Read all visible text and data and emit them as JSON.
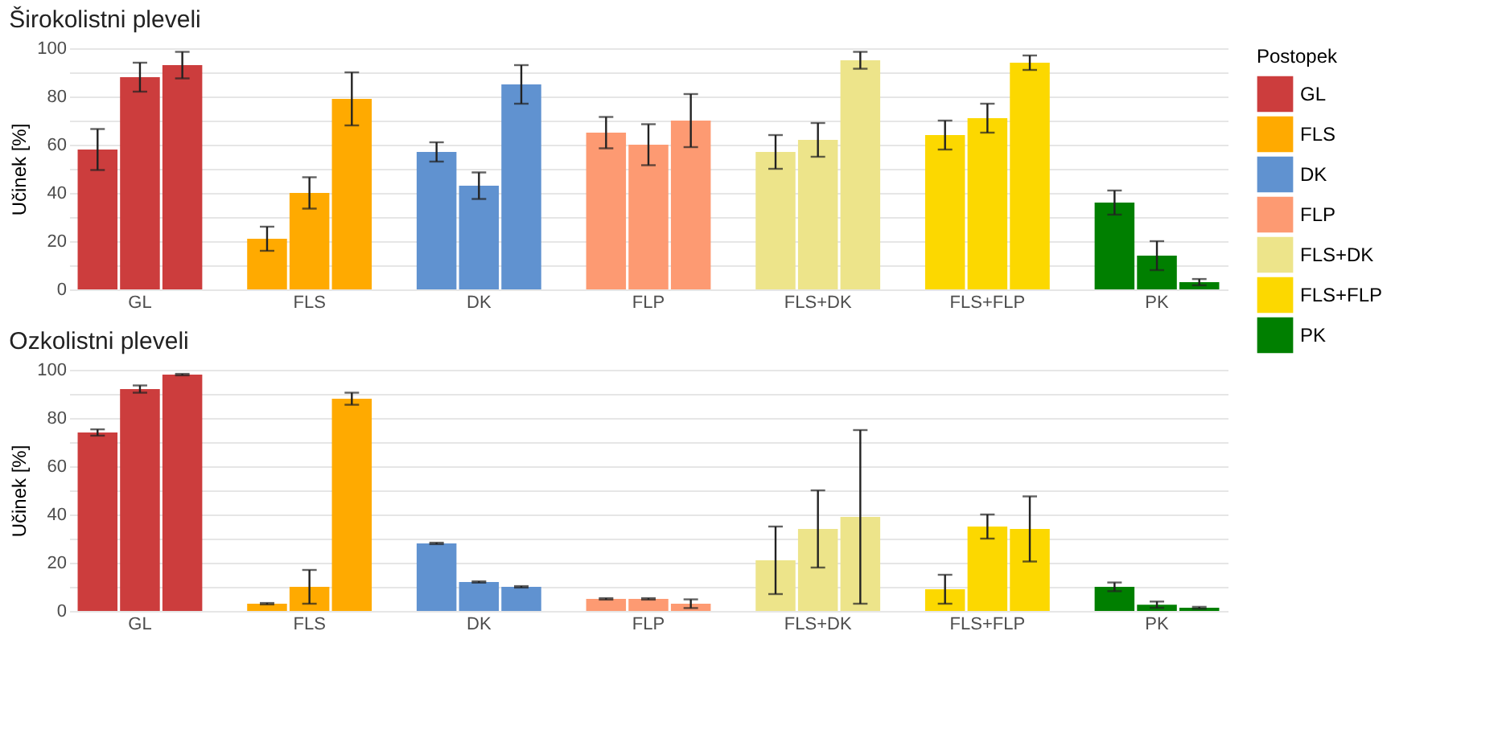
{
  "chart_data": [
    {
      "type": "bar",
      "title": "Širokolistni pleveli",
      "ylabel": "Učinek [%]",
      "legend_title": "Postopek",
      "legend": "right",
      "grid": "y",
      "categories": [
        null,
        "GL",
        null,
        null,
        null,
        "FLS",
        null,
        null,
        null,
        "DK",
        null,
        null,
        null,
        "FLP",
        null,
        null,
        null,
        "FLS+DK",
        null,
        null,
        null,
        "FLS+FLP",
        null,
        null,
        null,
        "PK",
        null
      ],
      "ylim": [
        0,
        100
      ],
      "yticks": [
        0,
        {
          "value": 10,
          "label": null
        },
        20,
        {
          "value": 30,
          "label": null
        },
        40,
        {
          "value": 50,
          "label": null
        },
        60,
        {
          "value": 70,
          "label": null
        },
        80,
        {
          "value": 90,
          "label": null
        },
        100
      ],
      "series": [
        {
          "name": "GL",
          "color": "#cc3d3d",
          "values": [
            58,
            88,
            93,
            null,
            null,
            null,
            null,
            null,
            null,
            null,
            null,
            null,
            null,
            null,
            null,
            null,
            null,
            null,
            null,
            null,
            null,
            null,
            null,
            null,
            null,
            null,
            null
          ],
          "errors": [
            8.5,
            6,
            5.5,
            null,
            null,
            null,
            null,
            null,
            null,
            null,
            null,
            null,
            null,
            null,
            null,
            null,
            null,
            null,
            null,
            null,
            null,
            null,
            null,
            null,
            null,
            null,
            null
          ]
        },
        {
          "name": "FLS",
          "color": "#ffaa00",
          "values": [
            null,
            null,
            null,
            null,
            21,
            40,
            79,
            null,
            null,
            null,
            null,
            null,
            null,
            null,
            null,
            null,
            null,
            null,
            null,
            null,
            null,
            null,
            null,
            null,
            null,
            null,
            null
          ],
          "errors": [
            null,
            null,
            null,
            null,
            5,
            6.5,
            11,
            null,
            null,
            null,
            null,
            null,
            null,
            null,
            null,
            null,
            null,
            null,
            null,
            null,
            null,
            null,
            null,
            null,
            null,
            null,
            null
          ]
        },
        {
          "name": "DK",
          "color": "#6092d0",
          "values": [
            null,
            null,
            null,
            null,
            null,
            null,
            null,
            null,
            57,
            43,
            85,
            null,
            null,
            null,
            null,
            null,
            null,
            null,
            null,
            null,
            null,
            null,
            null,
            null,
            null,
            null,
            null
          ],
          "errors": [
            null,
            null,
            null,
            null,
            null,
            null,
            null,
            null,
            4,
            5.5,
            8,
            null,
            null,
            null,
            null,
            null,
            null,
            null,
            null,
            null,
            null,
            null,
            null,
            null,
            null,
            null,
            null
          ]
        },
        {
          "name": "FLP",
          "color": "#fd9a72",
          "values": [
            null,
            null,
            null,
            null,
            null,
            null,
            null,
            null,
            null,
            null,
            null,
            null,
            65,
            60,
            70,
            null,
            null,
            null,
            null,
            null,
            null,
            null,
            null,
            null,
            null,
            null,
            null
          ],
          "errors": [
            null,
            null,
            null,
            null,
            null,
            null,
            null,
            null,
            null,
            null,
            null,
            null,
            6.5,
            8.5,
            11,
            null,
            null,
            null,
            null,
            null,
            null,
            null,
            null,
            null,
            null,
            null,
            null
          ]
        },
        {
          "name": "FLS+DK",
          "color": "#ede48a",
          "values": [
            null,
            null,
            null,
            null,
            null,
            null,
            null,
            null,
            null,
            null,
            null,
            null,
            null,
            null,
            null,
            null,
            57,
            62,
            95,
            null,
            null,
            null,
            null,
            null,
            null,
            null,
            null
          ],
          "errors": [
            null,
            null,
            null,
            null,
            null,
            null,
            null,
            null,
            null,
            null,
            null,
            null,
            null,
            null,
            null,
            null,
            7,
            7,
            3.5,
            null,
            null,
            null,
            null,
            null,
            null,
            null,
            null
          ]
        },
        {
          "name": "FLS+FLP",
          "color": "#fcd800",
          "values": [
            null,
            null,
            null,
            null,
            null,
            null,
            null,
            null,
            null,
            null,
            null,
            null,
            null,
            null,
            null,
            null,
            null,
            null,
            null,
            null,
            64,
            71,
            94,
            null,
            null,
            null,
            null
          ],
          "errors": [
            null,
            null,
            null,
            null,
            null,
            null,
            null,
            null,
            null,
            null,
            null,
            null,
            null,
            null,
            null,
            null,
            null,
            null,
            null,
            null,
            6,
            6,
            3,
            null,
            null,
            null,
            null
          ]
        },
        {
          "name": "PK",
          "color": "#007f00",
          "values": [
            null,
            null,
            null,
            null,
            null,
            null,
            null,
            null,
            null,
            null,
            null,
            null,
            null,
            null,
            null,
            null,
            null,
            null,
            null,
            null,
            null,
            null,
            null,
            null,
            36,
            14,
            3
          ],
          "errors": [
            null,
            null,
            null,
            null,
            null,
            null,
            null,
            null,
            null,
            null,
            null,
            null,
            null,
            null,
            null,
            null,
            null,
            null,
            null,
            null,
            null,
            null,
            null,
            null,
            5,
            6,
            1.3
          ]
        }
      ]
    },
    {
      "type": "bar",
      "title": "Ozkolistni pleveli",
      "ylabel": "Učinek [%]",
      "grid": "y",
      "categories": [
        null,
        "GL",
        null,
        null,
        null,
        "FLS",
        null,
        null,
        null,
        "DK",
        null,
        null,
        null,
        "FLP",
        null,
        null,
        null,
        "FLS+DK",
        null,
        null,
        null,
        "FLS+FLP",
        null,
        null,
        null,
        "PK",
        null
      ],
      "ylim": [
        0,
        100
      ],
      "yticks": [
        0,
        {
          "value": 10,
          "label": null
        },
        20,
        {
          "value": 30,
          "label": null
        },
        40,
        {
          "value": 50,
          "label": null
        },
        60,
        {
          "value": 70,
          "label": null
        },
        80,
        {
          "value": 90,
          "label": null
        },
        100
      ],
      "series": [
        {
          "name": "GL",
          "color": "#cc3d3d",
          "values": [
            74,
            92,
            98,
            null,
            null,
            null,
            null,
            null,
            null,
            null,
            null,
            null,
            null,
            null,
            null,
            null,
            null,
            null,
            null,
            null,
            null,
            null,
            null,
            null,
            null,
            null,
            null
          ],
          "errors": [
            1.3,
            1.5,
            0.3,
            null,
            null,
            null,
            null,
            null,
            null,
            null,
            null,
            null,
            null,
            null,
            null,
            null,
            null,
            null,
            null,
            null,
            null,
            null,
            null,
            null,
            null,
            null,
            null
          ]
        },
        {
          "name": "FLS",
          "color": "#ffaa00",
          "values": [
            null,
            null,
            null,
            null,
            3,
            10,
            88,
            null,
            null,
            null,
            null,
            null,
            null,
            null,
            null,
            null,
            null,
            null,
            null,
            null,
            null,
            null,
            null,
            null,
            null,
            null,
            null
          ],
          "errors": [
            null,
            null,
            null,
            null,
            0.3,
            7,
            2.5,
            null,
            null,
            null,
            null,
            null,
            null,
            null,
            null,
            null,
            null,
            null,
            null,
            null,
            null,
            null,
            null,
            null,
            null,
            null,
            null
          ]
        },
        {
          "name": "DK",
          "color": "#6092d0",
          "values": [
            null,
            null,
            null,
            null,
            null,
            null,
            null,
            null,
            28,
            12,
            10,
            null,
            null,
            null,
            null,
            null,
            null,
            null,
            null,
            null,
            null,
            null,
            null,
            null,
            null,
            null,
            null
          ],
          "errors": [
            null,
            null,
            null,
            null,
            null,
            null,
            null,
            null,
            0.3,
            0.3,
            0.3,
            null,
            null,
            null,
            null,
            null,
            null,
            null,
            null,
            null,
            null,
            null,
            null,
            null,
            null,
            null,
            null
          ]
        },
        {
          "name": "FLP",
          "color": "#fd9a72",
          "values": [
            null,
            null,
            null,
            null,
            null,
            null,
            null,
            null,
            null,
            null,
            null,
            null,
            5,
            5,
            3,
            null,
            null,
            null,
            null,
            null,
            null,
            null,
            null,
            null,
            null,
            null,
            null
          ],
          "errors": [
            null,
            null,
            null,
            null,
            null,
            null,
            null,
            null,
            null,
            null,
            null,
            null,
            0.3,
            0.3,
            1.8,
            null,
            null,
            null,
            null,
            null,
            null,
            null,
            null,
            null,
            null,
            null,
            null
          ]
        },
        {
          "name": "FLS+DK",
          "color": "#ede48a",
          "values": [
            null,
            null,
            null,
            null,
            null,
            null,
            null,
            null,
            null,
            null,
            null,
            null,
            null,
            null,
            null,
            null,
            21,
            34,
            39,
            null,
            null,
            null,
            null,
            null,
            null,
            null,
            null
          ],
          "errors": [
            null,
            null,
            null,
            null,
            null,
            null,
            null,
            null,
            null,
            null,
            null,
            null,
            null,
            null,
            null,
            null,
            14,
            16,
            36,
            null,
            null,
            null,
            null,
            null,
            null,
            null,
            null
          ]
        },
        {
          "name": "FLS+FLP",
          "color": "#fcd800",
          "values": [
            null,
            null,
            null,
            null,
            null,
            null,
            null,
            null,
            null,
            null,
            null,
            null,
            null,
            null,
            null,
            null,
            null,
            null,
            null,
            null,
            9,
            35,
            34,
            null,
            null,
            null,
            null
          ],
          "errors": [
            null,
            null,
            null,
            null,
            null,
            null,
            null,
            null,
            null,
            null,
            null,
            null,
            null,
            null,
            null,
            null,
            null,
            null,
            null,
            null,
            6,
            5,
            13.5,
            null,
            null,
            null,
            null
          ]
        },
        {
          "name": "PK",
          "color": "#007f00",
          "values": [
            null,
            null,
            null,
            null,
            null,
            null,
            null,
            null,
            null,
            null,
            null,
            null,
            null,
            null,
            null,
            null,
            null,
            null,
            null,
            null,
            null,
            null,
            null,
            null,
            10,
            2.6,
            1.3
          ],
          "errors": [
            null,
            null,
            null,
            null,
            null,
            null,
            null,
            null,
            null,
            null,
            null,
            null,
            null,
            null,
            null,
            null,
            null,
            null,
            null,
            null,
            null,
            null,
            null,
            null,
            1.8,
            1.3,
            0.4
          ]
        }
      ]
    }
  ]
}
